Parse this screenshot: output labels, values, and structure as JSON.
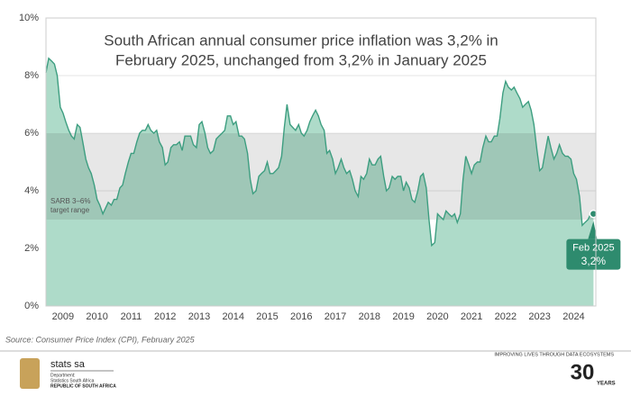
{
  "chart_data": {
    "type": "area",
    "title": [
      "South African annual consumer price inflation was 3,2% in",
      "February 2025, unchanged from 3,2% in January 2025"
    ],
    "x": [
      2009,
      2009.08,
      2009.17,
      2009.25,
      2009.33,
      2009.42,
      2009.5,
      2009.58,
      2009.67,
      2009.75,
      2009.83,
      2009.92,
      2010,
      2010.08,
      2010.17,
      2010.25,
      2010.33,
      2010.42,
      2010.5,
      2010.58,
      2010.67,
      2010.75,
      2010.83,
      2010.92,
      2011,
      2011.08,
      2011.17,
      2011.25,
      2011.33,
      2011.42,
      2011.5,
      2011.58,
      2011.67,
      2011.75,
      2011.83,
      2011.92,
      2012,
      2012.08,
      2012.17,
      2012.25,
      2012.33,
      2012.42,
      2012.5,
      2012.58,
      2012.67,
      2012.75,
      2012.83,
      2012.92,
      2013,
      2013.08,
      2013.17,
      2013.25,
      2013.33,
      2013.42,
      2013.5,
      2013.58,
      2013.67,
      2013.75,
      2013.83,
      2013.92,
      2014,
      2014.08,
      2014.17,
      2014.25,
      2014.33,
      2014.42,
      2014.5,
      2014.58,
      2014.67,
      2014.75,
      2014.83,
      2014.92,
      2015,
      2015.08,
      2015.17,
      2015.25,
      2015.33,
      2015.42,
      2015.5,
      2015.58,
      2015.67,
      2015.75,
      2015.83,
      2015.92,
      2016,
      2016.08,
      2016.17,
      2016.25,
      2016.33,
      2016.42,
      2016.5,
      2016.58,
      2016.67,
      2016.75,
      2016.83,
      2016.92,
      2017,
      2017.08,
      2017.17,
      2017.25,
      2017.33,
      2017.42,
      2017.5,
      2017.58,
      2017.67,
      2017.75,
      2017.83,
      2017.92,
      2018,
      2018.08,
      2018.17,
      2018.25,
      2018.33,
      2018.42,
      2018.5,
      2018.58,
      2018.67,
      2018.75,
      2018.83,
      2018.92,
      2019,
      2019.08,
      2019.17,
      2019.25,
      2019.33,
      2019.42,
      2019.5,
      2019.58,
      2019.67,
      2019.75,
      2019.83,
      2019.92,
      2020,
      2020.08,
      2020.17,
      2020.25,
      2020.33,
      2020.42,
      2020.5,
      2020.58,
      2020.67,
      2020.75,
      2020.83,
      2020.92,
      2021,
      2021.08,
      2021.17,
      2021.25,
      2021.33,
      2021.42,
      2021.5,
      2021.58,
      2021.67,
      2021.75,
      2021.83,
      2021.92,
      2022,
      2022.08,
      2022.17,
      2022.25,
      2022.33,
      2022.42,
      2022.5,
      2022.58,
      2022.67,
      2022.75,
      2022.83,
      2022.92,
      2023,
      2023.08,
      2023.17,
      2023.25,
      2023.33,
      2023.42,
      2023.5,
      2023.58,
      2023.67,
      2023.75,
      2023.83,
      2023.92,
      2024,
      2024.08,
      2024.17,
      2024.25,
      2024.33,
      2024.42,
      2024.5,
      2024.58,
      2024.67,
      2024.75,
      2024.83,
      2024.92,
      2025,
      2025.08
    ],
    "values": [
      8.1,
      8.6,
      8.5,
      8.4,
      8.0,
      6.9,
      6.7,
      6.4,
      6.1,
      5.9,
      5.8,
      6.3,
      6.2,
      5.7,
      5.1,
      4.8,
      4.6,
      4.2,
      3.7,
      3.5,
      3.2,
      3.4,
      3.6,
      3.5,
      3.7,
      3.7,
      4.1,
      4.2,
      4.6,
      5.0,
      5.3,
      5.3,
      5.7,
      6.0,
      6.1,
      6.1,
      6.3,
      6.1,
      6.0,
      6.1,
      5.7,
      5.5,
      4.9,
      5.0,
      5.5,
      5.6,
      5.6,
      5.7,
      5.4,
      5.9,
      5.9,
      5.9,
      5.6,
      5.5,
      6.3,
      6.4,
      6.0,
      5.5,
      5.3,
      5.4,
      5.8,
      5.9,
      6.0,
      6.1,
      6.6,
      6.6,
      6.3,
      6.4,
      5.9,
      5.9,
      5.8,
      5.3,
      4.4,
      3.9,
      4.0,
      4.5,
      4.6,
      4.7,
      5.0,
      4.6,
      4.6,
      4.7,
      4.8,
      5.2,
      6.2,
      7.0,
      6.3,
      6.2,
      6.1,
      6.3,
      6.0,
      5.9,
      6.1,
      6.4,
      6.6,
      6.8,
      6.6,
      6.3,
      6.1,
      5.3,
      5.4,
      5.1,
      4.6,
      4.8,
      5.1,
      4.8,
      4.6,
      4.7,
      4.4,
      4.0,
      3.8,
      4.5,
      4.4,
      4.6,
      5.1,
      4.9,
      4.9,
      5.1,
      5.2,
      4.5,
      4.0,
      4.1,
      4.5,
      4.4,
      4.5,
      4.5,
      4.0,
      4.3,
      4.1,
      3.7,
      3.6,
      4.0,
      4.5,
      4.6,
      4.1,
      3.0,
      2.1,
      2.2,
      3.2,
      3.1,
      3.0,
      3.3,
      3.2,
      3.1,
      3.2,
      2.9,
      3.2,
      4.4,
      5.2,
      4.9,
      4.6,
      4.9,
      5.0,
      5.0,
      5.5,
      5.9,
      5.7,
      5.7,
      5.9,
      5.9,
      6.5,
      7.4,
      7.8,
      7.6,
      7.5,
      7.6,
      7.4,
      7.2,
      6.9,
      7.0,
      7.1,
      6.8,
      6.3,
      5.4,
      4.7,
      4.8,
      5.4,
      5.9,
      5.5,
      5.1,
      5.3,
      5.6,
      5.3,
      5.2,
      5.2,
      5.1,
      4.6,
      4.4,
      3.8,
      2.8,
      2.9,
      3.0,
      3.2,
      3.2
    ],
    "color": "#3d9e80",
    "fill": "#aedbc9",
    "xlim": [
      2009,
      2025.15
    ],
    "xticks": [
      {
        "value": 2009.5,
        "label": "2009"
      },
      {
        "value": 2010.5,
        "label": "2010"
      },
      {
        "value": 2011.5,
        "label": "2011"
      },
      {
        "value": 2012.5,
        "label": "2012"
      },
      {
        "value": 2013.5,
        "label": "2013"
      },
      {
        "value": 2014.5,
        "label": "2014"
      },
      {
        "value": 2015.5,
        "label": "2015"
      },
      {
        "value": 2016.5,
        "label": "2016"
      },
      {
        "value": 2017.5,
        "label": "2017"
      },
      {
        "value": 2018.5,
        "label": "2018"
      },
      {
        "value": 2019.5,
        "label": "2019"
      },
      {
        "value": 2020.5,
        "label": "2020"
      },
      {
        "value": 2021.5,
        "label": "2021"
      },
      {
        "value": 2022.5,
        "label": "2022"
      },
      {
        "value": 2023.5,
        "label": "2023"
      },
      {
        "value": 2024.5,
        "label": "2024"
      }
    ],
    "ylim": [
      0,
      10
    ],
    "yticks": [
      {
        "value": 0,
        "label": "0%"
      },
      {
        "value": 2,
        "label": "2%"
      },
      {
        "value": 4,
        "label": "4%"
      },
      {
        "value": 6,
        "label": "6%"
      },
      {
        "value": 8,
        "label": "8%"
      },
      {
        "value": 10,
        "label": "10%"
      }
    ],
    "grid": true,
    "target_range": [
      3,
      6
    ],
    "target_label": [
      "SARB 3–6%",
      "target range"
    ],
    "callout": {
      "label": "Feb 2025",
      "value_label": "3,2%"
    },
    "source": "Source: Consumer Price Index (CPI), February 2025"
  },
  "footer": {
    "logo": "stats sa",
    "department": [
      "Department:",
      "Statistics South Africa",
      "REPUBLIC OF SOUTH AFRICA"
    ],
    "tagline": "IMPROVING LIVES THROUGH DATA ECOSYSTEMS",
    "anniversary": [
      "30",
      "YEARS"
    ]
  }
}
